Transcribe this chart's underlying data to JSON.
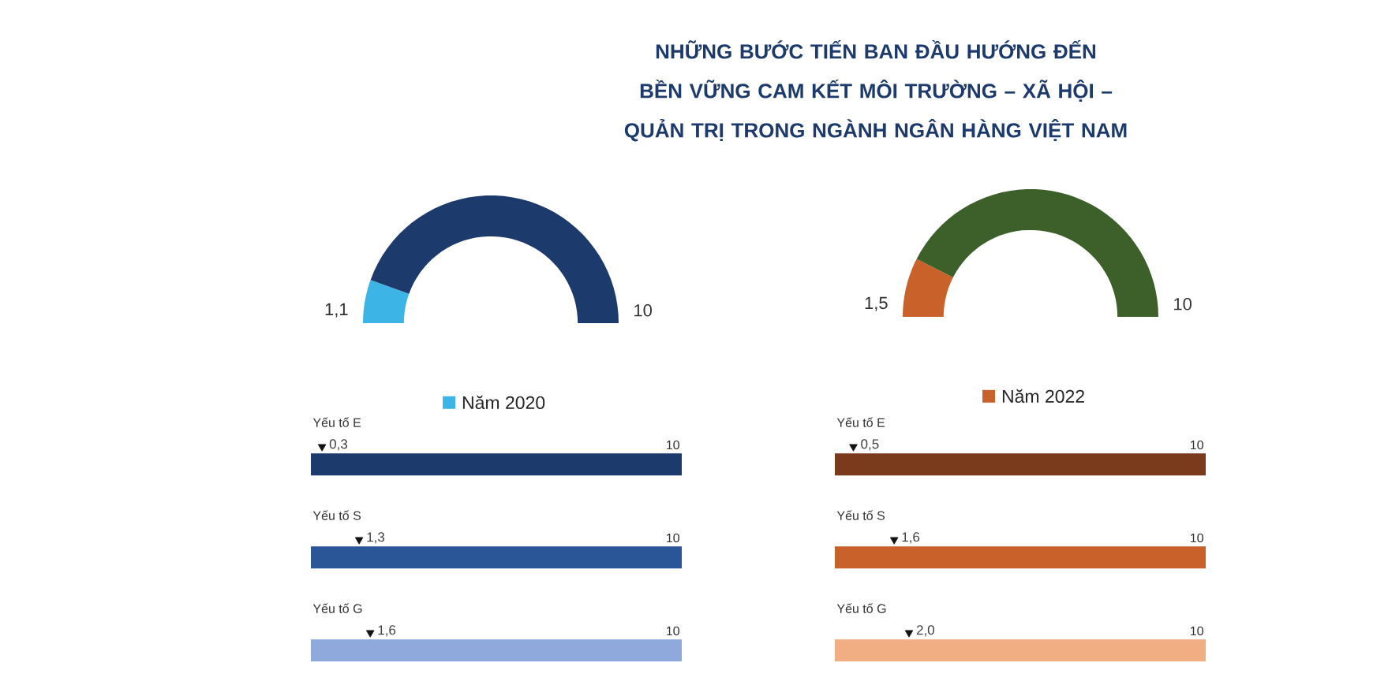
{
  "chart_data": [
    {
      "type": "donut",
      "title": "NHỮNG BƯỚC TIẾN BAN ĐẦU HƯỚNG ĐẾN BỀN VỮNG CAM KẾT MÔI TRƯỜNG – XÃ HỘI – QUẢN TRỊ TRONG NGÀNH NGÂN HÀNG VIỆT NAM",
      "categories": [
        "Năm 2020",
        null
      ],
      "values": [
        1.1,
        8.9
      ],
      "colors": [
        "#3cb4e6",
        "#1c3a6b"
      ],
      "value_labels": [
        "1,1",
        null
      ],
      "annotations": [
        "10"
      ],
      "legend": "bottom"
    },
    {
      "type": "donut",
      "categories": [
        "Năm 2022",
        null
      ],
      "values": [
        1.5,
        8.5
      ],
      "colors": [
        "#c8612a",
        "#3d5f2a"
      ],
      "value_labels": [
        "1,5",
        null
      ],
      "annotations": [
        "10"
      ],
      "legend": "bottom"
    },
    {
      "type": "bar",
      "orientation": "horizontal",
      "categories": [
        "Yếu tố E",
        "Yếu tố S",
        "Yếu tố G"
      ],
      "tick_labels": "y",
      "marker": "triangle",
      "series": [
        {
          "type": "bar",
          "colors": [
            "#1c3a6b",
            "#2a5597",
            "#8fa9dc"
          ],
          "values": [
            10,
            10,
            10
          ],
          "value_labels": [
            "10",
            "10",
            "10"
          ]
        },
        {
          "type": "scatter",
          "color": "#111111",
          "values": [
            0.3,
            1.3,
            1.6
          ],
          "value_labels": [
            "0,3",
            "1,3",
            "1,6"
          ]
        }
      ]
    },
    {
      "type": "bar",
      "orientation": "horizontal",
      "categories": [
        "Yếu tố E",
        "Yếu tố S",
        "Yếu tố G"
      ],
      "tick_labels": "y",
      "marker": "triangle",
      "series": [
        {
          "type": "bar",
          "colors": [
            "#7a3a1c",
            "#c8612a",
            "#f0ae82"
          ],
          "values": [
            10,
            10,
            10
          ],
          "value_labels": [
            "10",
            "10",
            "10"
          ]
        },
        {
          "type": "scatter",
          "color": "#111111",
          "values": [
            0.5,
            1.6,
            2.0
          ],
          "value_labels": [
            "0,5",
            "1,6",
            "2,0"
          ]
        }
      ]
    }
  ]
}
